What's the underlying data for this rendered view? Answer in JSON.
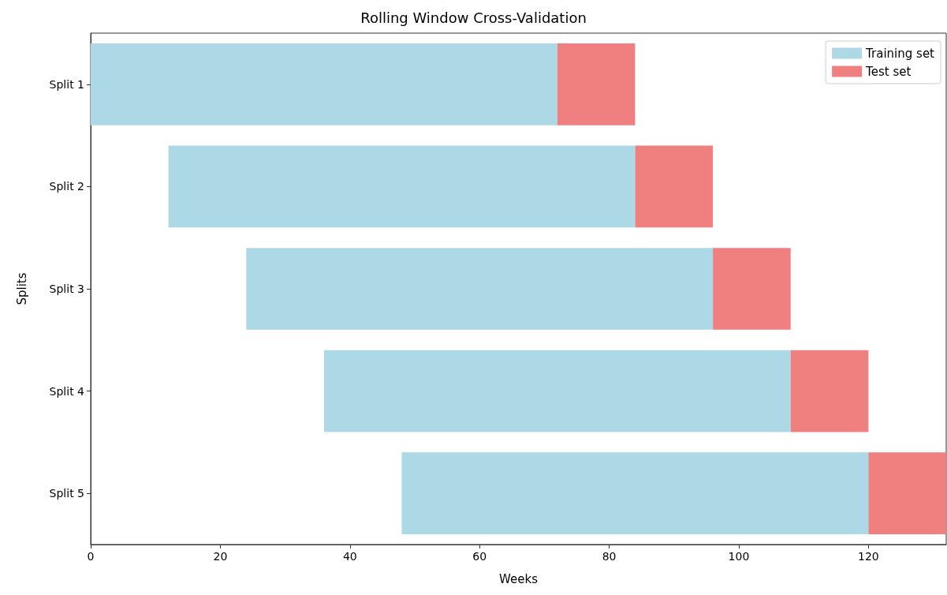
{
  "chart_data": {
    "type": "bar",
    "orientation": "horizontal",
    "title": "Rolling Window Cross-Validation",
    "xlabel": "Weeks",
    "ylabel": "Splits",
    "categories": [
      "Split 1",
      "Split 2",
      "Split 3",
      "Split 4",
      "Split 5"
    ],
    "series": [
      {
        "name": "Training set",
        "color": "#add8e6",
        "values": [
          72,
          72,
          72,
          72,
          72
        ],
        "base": [
          0,
          12,
          24,
          36,
          48
        ]
      },
      {
        "name": "Test set",
        "color": "#f08080",
        "values": [
          12,
          12,
          12,
          12,
          12
        ],
        "base": [
          72,
          84,
          96,
          108,
          120
        ]
      }
    ],
    "xlim": [
      0,
      132
    ],
    "xticks": [
      0,
      20,
      40,
      60,
      80,
      100,
      120
    ],
    "legend": "top right",
    "grid": false
  }
}
